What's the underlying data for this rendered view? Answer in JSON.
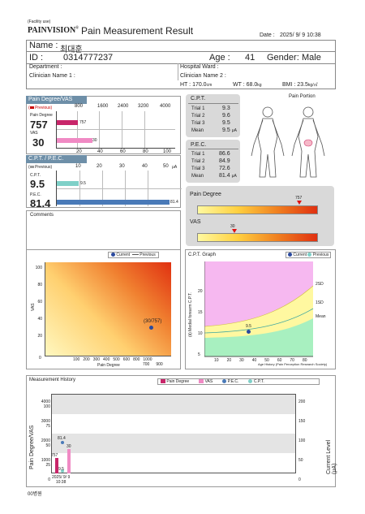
{
  "header": {
    "facility": "(Facility use)",
    "logo": "PAINVISION",
    "reg": "®",
    "title": "Pain Measurement Result",
    "date_label": "Date :",
    "date": "2025/ 9/ 9 10:38"
  },
  "patient": {
    "name_label": "Name :",
    "name": "최대훈",
    "id_label": "ID :",
    "id": "0314777237",
    "age_label": "Age :",
    "age": "41",
    "gender_label": "Gender:",
    "gender": "Male",
    "department": "Department :",
    "ward": "Hospital Ward :",
    "clin1": "Clinician Name 1 :",
    "clin2": "Clinician Name 2 :",
    "ht_label": "HT :",
    "ht": "170.0",
    "ht_unit": "cm",
    "wt_label": "WT :",
    "wt": "68.0",
    "wt_unit": "kg",
    "bmi_label": "BMI :",
    "bmi": "23.5",
    "bmi_unit": "kg/㎡"
  },
  "pd_vas": {
    "title": "Pain Degree/VAS",
    "previous": "Previous",
    "ticks_top": [
      "800",
      "1600",
      "2400",
      "3200",
      "4000"
    ],
    "ticks_bottom": [
      "20",
      "40",
      "60",
      "80",
      "100"
    ],
    "pd_label": "Pain Degree",
    "pd_value": "757",
    "pd_bar_label": "757",
    "vas_label": "VAS",
    "vas_value": "30",
    "vas_bar_label": "30"
  },
  "cpt_pec": {
    "title": "C.P.T. / P.E.C.",
    "previous": "Previous",
    "ticks": [
      "10",
      "20",
      "30",
      "40",
      "50"
    ],
    "unit": "μA",
    "cpt_label": "C.P.T.",
    "cpt_value": "9.5",
    "cpt_bar_label": "9.5",
    "pec_label": "P.E.C.",
    "pec_value": "81.4",
    "pec_bar_label": "81.4"
  },
  "comments": {
    "label": "Comments"
  },
  "cpt_box": {
    "title": "C.P.T.",
    "rows": [
      {
        "k": "Trial 1",
        "v": "9.3"
      },
      {
        "k": "Trial 2",
        "v": "9.6"
      },
      {
        "k": "Trial 3",
        "v": "9.5"
      },
      {
        "k": "Mean",
        "v": "9.5",
        "u": "μA"
      }
    ]
  },
  "pec_box": {
    "title": "P.E.C.",
    "rows": [
      {
        "k": "Trial 1",
        "v": "86.6"
      },
      {
        "k": "Trial 2",
        "v": "84.9"
      },
      {
        "k": "Trial 3",
        "v": "72.6"
      },
      {
        "k": "Mean",
        "v": "81.4",
        "u": "μA"
      }
    ]
  },
  "pain_portion": {
    "label": "Pain Portion"
  },
  "scales": {
    "pd_label": "Pain Degree",
    "pd_marker": "757",
    "pd_fraction": 0.189,
    "vas_label": "VAS",
    "vas_marker": "30",
    "vas_fraction": 0.3
  },
  "scatter": {
    "legend_current": "Current",
    "legend_previous": "Previous",
    "ylabel": "VAS",
    "xlabel": "Pain Degree",
    "yticks": [
      "100",
      "80",
      "60",
      "40",
      "20",
      "0"
    ],
    "xticks": [
      "100",
      "200",
      "300",
      "400",
      "500",
      "600",
      "800",
      "1000"
    ],
    "xticks2": [
      "700",
      "900"
    ],
    "point_label": "(30/757)"
  },
  "cpt_graph": {
    "title": "C.P.T. Graph",
    "legend_current": "Current",
    "legend_previous": "Previous",
    "ylabel": "(Ⅱ) Medial forearm C.P.T.",
    "yticks": [
      "20",
      "15",
      "10",
      "5",
      "0"
    ],
    "xticks": [
      "10",
      "20",
      "30",
      "40",
      "50",
      "60",
      "70",
      "80"
    ],
    "band_labels": [
      "2SD",
      "1SD",
      "Mean"
    ],
    "point_label": "9.5",
    "source": "Age History (Pain Perception Research Society)"
  },
  "history": {
    "title": "Measurement History",
    "legend": [
      "Pain Degree",
      "VAS",
      "P.E.C.",
      "C.P.T."
    ],
    "ylabel_left": "Pain Degree/VAS",
    "ylabel_right": "Current Level (μA)",
    "left_ticks_outer": [
      "4000",
      "3000",
      "2000",
      "1000",
      "0"
    ],
    "left_ticks_inner": [
      "100",
      "75",
      "50",
      "25",
      "0"
    ],
    "right_ticks": [
      "200",
      "150",
      "100",
      "50",
      "0"
    ],
    "date": "2025/ 9/ 9",
    "time": "10:38",
    "lbl_pec": "81.4",
    "lbl_vas": "30",
    "lbl_pd": "757",
    "lbl_cpt": "9.5"
  },
  "footer": {
    "code": "00병원"
  },
  "colors": {
    "pd": "#c8266a",
    "vas": "#f08ac4",
    "pec": "#4a7ab8",
    "cpt": "#7fd0c8",
    "header": "#6e8fa8"
  },
  "chart_data": [
    {
      "type": "bar",
      "title": "Pain Degree/VAS",
      "categories": [
        "Pain Degree",
        "VAS"
      ],
      "values": [
        757,
        30
      ]
    },
    {
      "type": "bar",
      "title": "C.P.T. / P.E.C.",
      "categories": [
        "C.P.T.",
        "P.E.C."
      ],
      "values": [
        9.5,
        81.4
      ],
      "unit": "μA"
    },
    {
      "type": "scatter",
      "xlabel": "Pain Degree",
      "ylabel": "VAS",
      "series": [
        {
          "name": "Current",
          "x": [
            757
          ],
          "y": [
            30
          ]
        }
      ],
      "ylim": [
        0,
        100
      ]
    },
    {
      "type": "line",
      "title": "C.P.T. Graph",
      "series": [
        {
          "name": "Current",
          "x": [
            41
          ],
          "y": [
            9.5
          ]
        }
      ],
      "ylim": [
        0,
        20
      ],
      "xlim": [
        0,
        80
      ]
    },
    {
      "type": "bar",
      "title": "Measurement History",
      "categories": [
        "2025/ 9/ 9 10:38"
      ],
      "series": [
        {
          "name": "Pain Degree",
          "values": [
            757
          ]
        },
        {
          "name": "VAS",
          "values": [
            30
          ]
        },
        {
          "name": "P.E.C.",
          "values": [
            81.4
          ]
        },
        {
          "name": "C.P.T.",
          "values": [
            9.5
          ]
        }
      ]
    }
  ]
}
